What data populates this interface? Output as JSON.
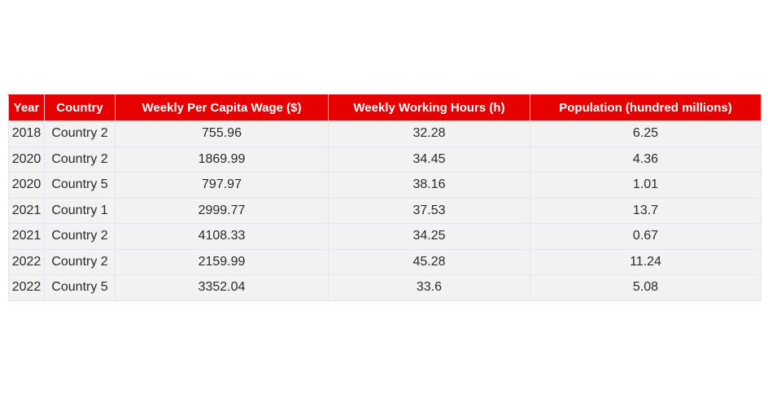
{
  "chart_data": {
    "type": "table",
    "columns": [
      "Year",
      "Country",
      "Weekly Per Capita Wage ($)",
      "Weekly Working Hours (h)",
      "Population (hundred millions)"
    ],
    "rows": [
      [
        "2018",
        "Country 2",
        "755.96",
        "32.28",
        "6.25"
      ],
      [
        "2020",
        "Country 2",
        "1869.99",
        "34.45",
        "4.36"
      ],
      [
        "2020",
        "Country 5",
        "797.97",
        "38.16",
        "1.01"
      ],
      [
        "2021",
        "Country 1",
        "2999.77",
        "37.53",
        "13.7"
      ],
      [
        "2021",
        "Country 2",
        "4108.33",
        "34.25",
        "0.67"
      ],
      [
        "2022",
        "Country 2",
        "2159.99",
        "45.28",
        "11.24"
      ],
      [
        "2022",
        "Country 5",
        "3352.04",
        "33.6",
        "5.08"
      ]
    ]
  },
  "colors": {
    "header_bg": "#e60000",
    "header_text": "#ffffff",
    "cell_bg": "#f2f2f2",
    "cell_text": "#2a2a2a",
    "grid": "#e4e4f2"
  }
}
